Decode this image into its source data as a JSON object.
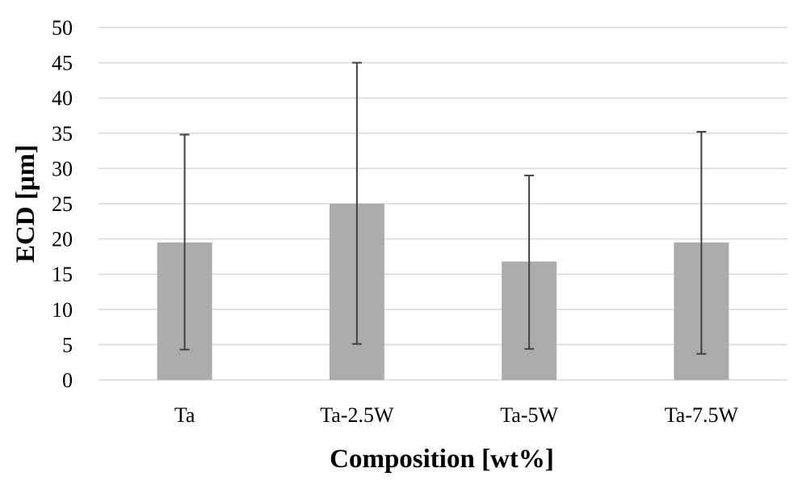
{
  "chart_data": {
    "type": "bar",
    "title": "",
    "xlabel": "Composition  [wt%]",
    "ylabel": "ECD [μm]",
    "categories": [
      "Ta",
      "Ta-2.5W",
      "Ta-5W",
      "Ta-7.5W"
    ],
    "values": [
      19.5,
      25,
      16.8,
      19.5
    ],
    "error_low": [
      4.3,
      5.1,
      4.4,
      3.7
    ],
    "error_high": [
      34.8,
      45,
      29,
      35.2
    ],
    "ylim": [
      0,
      50
    ],
    "yticks": [
      "0",
      "5",
      "10",
      "15",
      "20",
      "25",
      "30",
      "35",
      "40",
      "45",
      "50"
    ],
    "grid": true,
    "bar_color": "#acacab",
    "grid_color": "#d9d9d9",
    "error_bar_color": "#404040"
  }
}
